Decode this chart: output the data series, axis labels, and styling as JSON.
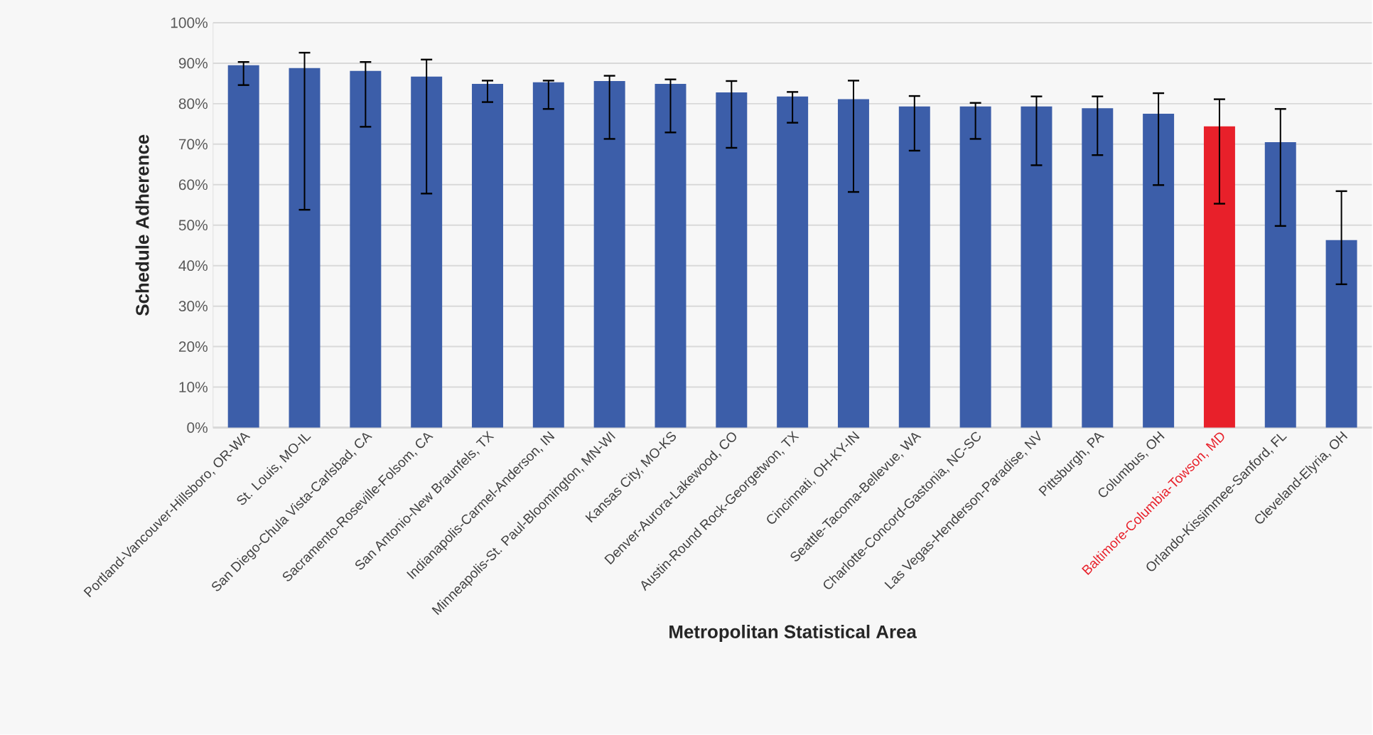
{
  "chart_data": {
    "type": "bar",
    "xlabel": "Metropolitan Statistical Area",
    "ylabel": "Schedule Adherence",
    "categories": [
      "Portland-Vancouver-Hillsboro, OR-WA",
      "St. Louis, MO-IL",
      "San Diego-Chula Vista-Carlsbad, CA",
      "Sacramento-Roseville-Folsom, CA",
      "San Antonio-New Braunfels, TX",
      "Indianapolis-Carmel-Anderson, IN",
      "Minneapolis-St. Paul-Bloomington, MN-WI",
      "Kansas City, MO-KS",
      "Denver-Aurora-Lakewood, CO",
      "Austin-Round Rock-Georgetwon, TX",
      "Cincinnati, OH-KY-IN",
      "Seattle-Tacoma-Bellevue, WA",
      "Charlotte-Concord-Gastonia, NC-SC",
      "Las Vegas-Henderson-Paradise, NV",
      "Pittsburgh, PA",
      "Columbus, OH",
      "Baltimore-Columbia-Towson, MD",
      "Orlando-Kissimmee-Sanford, FL",
      "Cleveland-Elyria, OH"
    ],
    "values": [
      89.5,
      88.8,
      88.1,
      86.7,
      84.9,
      85.3,
      85.6,
      84.9,
      82.8,
      81.8,
      81.1,
      79.3,
      79.3,
      79.3,
      78.9,
      77.5,
      74.4,
      70.5,
      46.3
    ],
    "errors": [
      [
        84.6,
        90.3
      ],
      [
        53.8,
        92.6
      ],
      [
        74.3,
        90.3
      ],
      [
        57.8,
        90.9
      ],
      [
        80.4,
        85.7
      ],
      [
        78.7,
        85.7
      ],
      [
        71.3,
        86.9
      ],
      [
        72.9,
        86.0
      ],
      [
        69.1,
        85.6
      ],
      [
        75.3,
        82.9
      ],
      [
        58.2,
        85.7
      ],
      [
        68.4,
        81.9
      ],
      [
        71.3,
        80.2
      ],
      [
        64.8,
        81.8
      ],
      [
        67.3,
        81.8
      ],
      [
        59.9,
        82.6
      ],
      [
        55.3,
        81.1
      ],
      [
        49.8,
        78.7
      ],
      [
        35.4,
        58.4
      ]
    ],
    "colors": [
      "#3c5ea9",
      "#3c5ea9",
      "#3c5ea9",
      "#3c5ea9",
      "#3c5ea9",
      "#3c5ea9",
      "#3c5ea9",
      "#3c5ea9",
      "#3c5ea9",
      "#3c5ea9",
      "#3c5ea9",
      "#3c5ea9",
      "#3c5ea9",
      "#3c5ea9",
      "#3c5ea9",
      "#3c5ea9",
      "#e8202a",
      "#3c5ea9",
      "#3c5ea9"
    ],
    "ylim": [
      0,
      100
    ],
    "yticks": [
      {
        "value": 0,
        "label": "0%"
      },
      {
        "value": 10,
        "label": "10%"
      },
      {
        "value": 20,
        "label": "20%"
      },
      {
        "value": 30,
        "label": "30%"
      },
      {
        "value": 40,
        "label": "40%"
      },
      {
        "value": 50,
        "label": "50%"
      },
      {
        "value": 60,
        "label": "60%"
      },
      {
        "value": 70,
        "label": "70%"
      },
      {
        "value": 80,
        "label": "80%"
      },
      {
        "value": 90,
        "label": "90%"
      },
      {
        "value": 100,
        "label": "100%"
      }
    ],
    "grid": "y"
  }
}
